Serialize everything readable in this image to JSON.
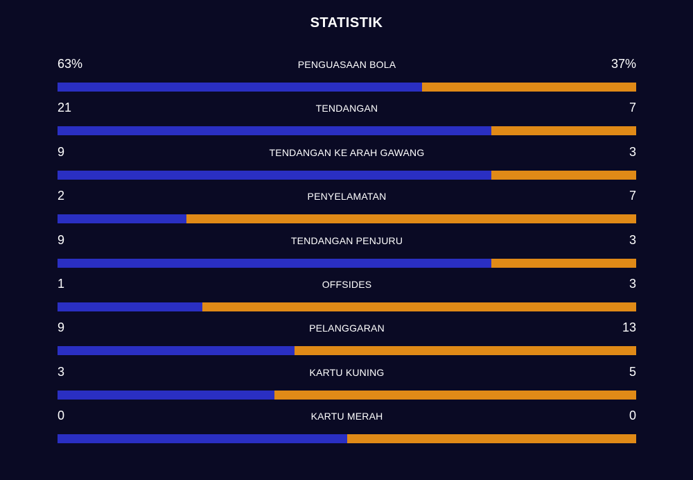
{
  "title": "STATISTIK",
  "colors": {
    "background": "#0a0a24",
    "left_team": "#2a2fc2",
    "right_team": "#e08a17"
  },
  "stats": [
    {
      "label": "PENGUASAAN BOLA",
      "left": "63%",
      "right": "37%",
      "left_share": 0.63
    },
    {
      "label": "TENDANGAN",
      "left": "21",
      "right": "7",
      "left_share": 0.75
    },
    {
      "label": "TENDANGAN KE ARAH GAWANG",
      "left": "9",
      "right": "3",
      "left_share": 0.75
    },
    {
      "label": "PENYELAMATAN",
      "left": "2",
      "right": "7",
      "left_share": 0.2222
    },
    {
      "label": "TENDANGAN PENJURU",
      "left": "9",
      "right": "3",
      "left_share": 0.75
    },
    {
      "label": "OFFSIDES",
      "left": "1",
      "right": "3",
      "left_share": 0.25
    },
    {
      "label": "PELANGGARAN",
      "left": "9",
      "right": "13",
      "left_share": 0.4091
    },
    {
      "label": "KARTU KUNING",
      "left": "3",
      "right": "5",
      "left_share": 0.375
    },
    {
      "label": "KARTU MERAH",
      "left": "0",
      "right": "0",
      "left_share": 0.5
    }
  ]
}
